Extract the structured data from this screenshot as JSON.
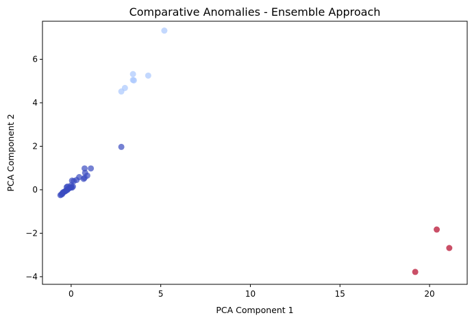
{
  "chart_data": {
    "type": "scatter",
    "title": "Comparative Anomalies - Ensemble Approach",
    "xlabel": "PCA Component 1",
    "ylabel": "PCA Component 2",
    "xlim": [
      -1.6,
      22.1
    ],
    "ylim": [
      -4.35,
      7.75
    ],
    "xticks": [
      0,
      5,
      10,
      15,
      20
    ],
    "yticks": [
      -4,
      -2,
      0,
      2,
      4,
      6
    ],
    "grid": false,
    "legend": "none",
    "colors": {
      "cluster_0": "#3b4cc0",
      "cluster_1": "#aac7fd",
      "cluster_2": "#b40426"
    },
    "series": [
      {
        "cluster": 0,
        "points": [
          [
            -0.6,
            -0.25
          ],
          [
            -0.55,
            -0.22
          ],
          [
            -0.5,
            -0.2
          ],
          [
            -0.48,
            -0.15
          ],
          [
            -0.45,
            -0.12
          ],
          [
            -0.4,
            -0.1
          ],
          [
            -0.35,
            -0.08
          ],
          [
            -0.3,
            -0.05
          ],
          [
            -0.25,
            -0.02
          ],
          [
            -0.2,
            0.0
          ],
          [
            -0.15,
            0.05
          ],
          [
            -0.1,
            0.08
          ],
          [
            -0.05,
            0.1
          ],
          [
            -0.25,
            0.12
          ],
          [
            -0.2,
            0.15
          ],
          [
            0.0,
            0.12
          ],
          [
            0.05,
            0.1
          ],
          [
            0.1,
            0.15
          ],
          [
            0.0,
            0.2
          ],
          [
            0.05,
            0.42
          ],
          [
            0.15,
            0.4
          ],
          [
            0.3,
            0.45
          ],
          [
            0.45,
            0.58
          ],
          [
            0.7,
            0.5
          ],
          [
            0.75,
            0.55
          ],
          [
            0.9,
            0.65
          ],
          [
            0.78,
            0.78
          ],
          [
            0.75,
            0.98
          ],
          [
            1.1,
            0.98
          ],
          [
            2.8,
            1.97
          ]
        ]
      },
      {
        "cluster": 1,
        "points": [
          [
            2.8,
            4.52
          ],
          [
            3.0,
            4.68
          ],
          [
            3.45,
            5.05
          ],
          [
            3.5,
            5.03
          ],
          [
            3.45,
            5.32
          ],
          [
            4.3,
            5.25
          ],
          [
            5.2,
            7.32
          ]
        ]
      },
      {
        "cluster": 2,
        "points": [
          [
            19.2,
            -3.78
          ],
          [
            20.4,
            -1.83
          ],
          [
            21.1,
            -2.68
          ]
        ]
      }
    ]
  }
}
